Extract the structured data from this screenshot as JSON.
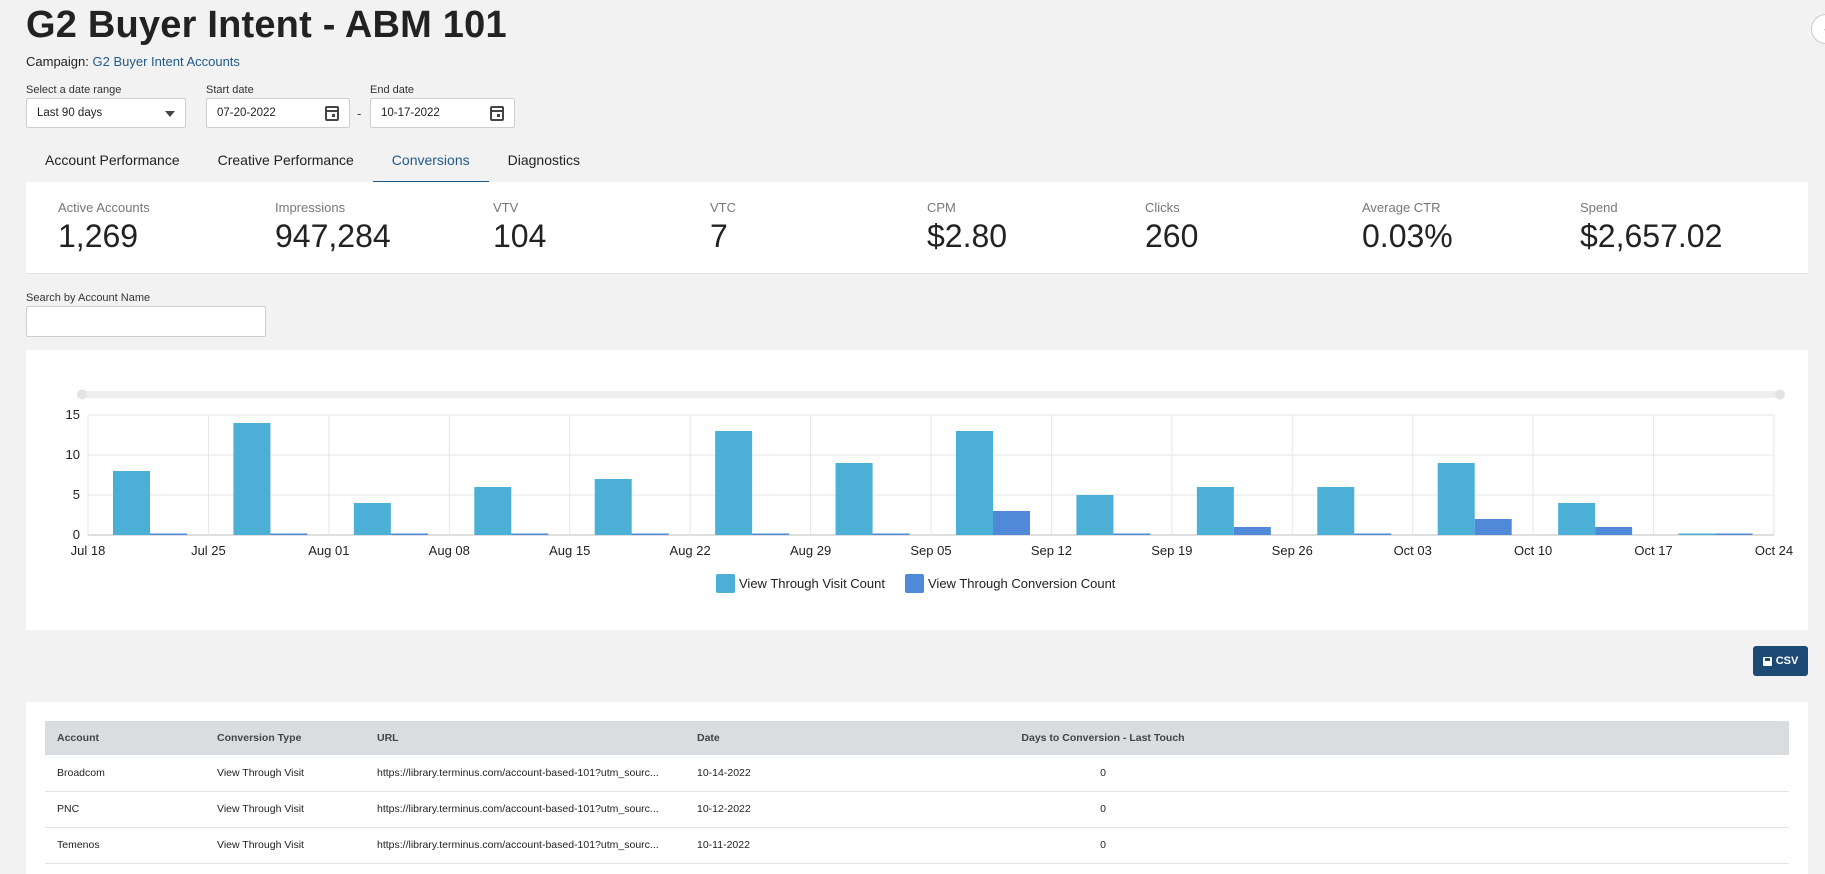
{
  "page": {
    "title": "G2 Buyer Intent - ABM 101",
    "campaign_label": "Campaign:",
    "campaign_name": "G2 Buyer Intent Accounts"
  },
  "filters": {
    "date_range": {
      "label": "Select a date range",
      "value": "Last 90 days"
    },
    "start": {
      "label": "Start date",
      "value": "07-20-2022"
    },
    "separator": "-",
    "end": {
      "label": "End date",
      "value": "10-17-2022"
    }
  },
  "tabs": [
    {
      "label": "Account Performance"
    },
    {
      "label": "Creative Performance"
    },
    {
      "label": "Conversions"
    },
    {
      "label": "Diagnostics"
    }
  ],
  "stats": [
    {
      "label": "Active Accounts",
      "value": "1,269"
    },
    {
      "label": "Impressions",
      "value": "947,284"
    },
    {
      "label": "VTV",
      "value": "104"
    },
    {
      "label": "VTC",
      "value": "7"
    },
    {
      "label": "CPM",
      "value": "$2.80"
    },
    {
      "label": "Clicks",
      "value": "260"
    },
    {
      "label": "Average CTR",
      "value": "0.03%"
    },
    {
      "label": "Spend",
      "value": "$2,657.02"
    }
  ],
  "search": {
    "label": "Search by Account Name",
    "value": ""
  },
  "chart_data": {
    "type": "bar",
    "categories": [
      "Jul 18",
      "Jul 25",
      "Aug 01",
      "Aug 08",
      "Aug 15",
      "Aug 22",
      "Aug 29",
      "Sep 05",
      "Sep 12",
      "Sep 19",
      "Sep 26",
      "Oct 03",
      "Oct 10",
      "Oct 17"
    ],
    "x_tick_labels": [
      "Jul 18",
      "Jul 25",
      "Aug 01",
      "Aug 08",
      "Aug 15",
      "Aug 22",
      "Aug 29",
      "Sep 05",
      "Sep 12",
      "Sep 19",
      "Sep 26",
      "Oct 03",
      "Oct 10",
      "Oct 17",
      "Oct 24"
    ],
    "series": [
      {
        "name": "View Through Visit Count",
        "color": "#4bafd6",
        "values": [
          8,
          14,
          4,
          6,
          7,
          13,
          9,
          13,
          5,
          6,
          6,
          9,
          4,
          0
        ]
      },
      {
        "name": "View Through Conversion Count",
        "color": "#5089d8",
        "values": [
          0,
          0,
          0,
          0,
          0,
          0,
          0,
          3,
          0,
          1,
          0,
          2,
          1,
          0
        ]
      }
    ],
    "ylim": [
      0,
      15
    ],
    "y_ticks": [
      0,
      5,
      10,
      15
    ],
    "grid": true,
    "legend": "bottom-center"
  },
  "csv_button": {
    "label": "CSV"
  },
  "table": {
    "headers": [
      "Account",
      "Conversion Type",
      "URL",
      "Date",
      "Days to Conversion - Last Touch"
    ],
    "rows": [
      [
        "Broadcom",
        "View Through Visit",
        "https://library.terminus.com/account-based-101?utm_sourc...",
        "10-14-2022",
        "0"
      ],
      [
        "PNC",
        "View Through Visit",
        "https://library.terminus.com/account-based-101?utm_sourc...",
        "10-12-2022",
        "0"
      ],
      [
        "Temenos",
        "View Through Visit",
        "https://library.terminus.com/account-based-101?utm_sourc...",
        "10-11-2022",
        "0"
      ]
    ]
  }
}
